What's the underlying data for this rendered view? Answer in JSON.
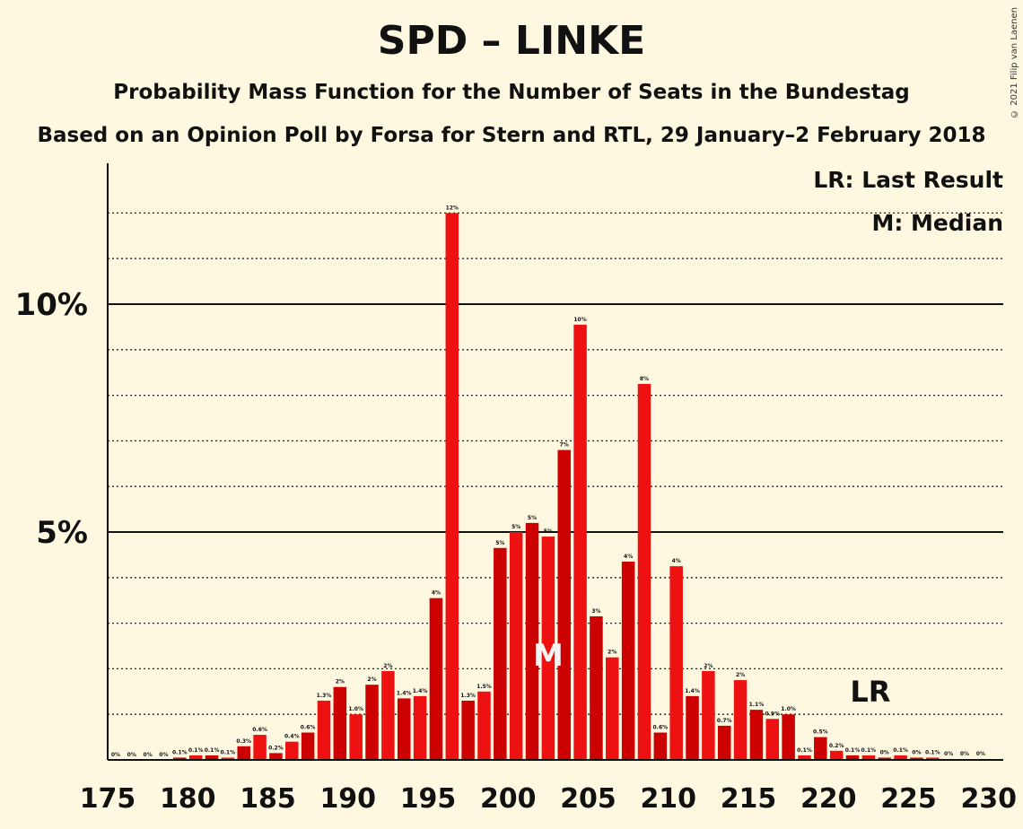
{
  "title": "SPD – LINKE",
  "subtitle": "Probability Mass Function for the Number of Seats in the Bundestag",
  "subtitle2": "Based on an Opinion Poll by Forsa for Stern and RTL, 29 January–2 February 2018",
  "copyright": "© 2021 Filip van Laenen",
  "legend": {
    "lr": "LR: Last Result",
    "m": "M: Median"
  },
  "markers": {
    "median_label": "M",
    "median_seat": 202,
    "last_result_label": "LR",
    "last_result_seat": 222
  },
  "colors": {
    "bar_dark": "#cc0000",
    "bar_light": "#ee1111",
    "background": "#fff8e1"
  },
  "chart_data": {
    "type": "bar",
    "xlim": [
      175,
      230
    ],
    "ylim": [
      0,
      13
    ],
    "yticks": [
      {
        "value": 5,
        "label": "5%"
      },
      {
        "value": 10,
        "label": "10%"
      }
    ],
    "xticks": [
      175,
      180,
      185,
      190,
      195,
      200,
      205,
      210,
      215,
      220,
      225,
      230
    ],
    "categories": [
      175,
      176,
      177,
      178,
      179,
      180,
      181,
      182,
      183,
      184,
      185,
      186,
      187,
      188,
      189,
      190,
      191,
      192,
      193,
      194,
      195,
      196,
      197,
      198,
      199,
      200,
      201,
      202,
      203,
      204,
      205,
      206,
      207,
      208,
      209,
      210,
      211,
      212,
      213,
      214,
      215,
      216,
      217,
      218,
      219,
      220,
      221,
      222,
      223,
      224,
      225,
      226,
      227,
      228,
      229
    ],
    "values": [
      0,
      0,
      0,
      0,
      0.05,
      0.1,
      0.1,
      0.05,
      0.3,
      0.55,
      0.15,
      0.4,
      0.6,
      1.3,
      1.6,
      1.0,
      1.65,
      1.95,
      1.35,
      1.4,
      3.55,
      12.0,
      1.3,
      1.5,
      4.65,
      5.0,
      5.2,
      4.9,
      6.8,
      9.55,
      3.15,
      2.25,
      4.35,
      8.25,
      0.6,
      4.25,
      1.4,
      1.95,
      0.75,
      1.75,
      1.1,
      0.9,
      1.0,
      0.1,
      0.5,
      0.2,
      0.1,
      0.1,
      0.05,
      0.1,
      0.05,
      0.05,
      0.02,
      0.02,
      0.02
    ],
    "labels": [
      "0%",
      "0%",
      "0%",
      "0%",
      "0.1%",
      "0.1%",
      "0.1%",
      "0.1%",
      "0.3%",
      "0.6%",
      "0.2%",
      "0.4%",
      "0.6%",
      "1.3%",
      "2%",
      "1.0%",
      "2%",
      "2%",
      "1.4%",
      "1.4%",
      "4%",
      "12%",
      "1.3%",
      "1.5%",
      "5%",
      "5%",
      "5%",
      "5%",
      "7%",
      "10%",
      "3%",
      "2%",
      "4%",
      "8%",
      "0.6%",
      "4%",
      "1.4%",
      "2%",
      "0.7%",
      "2%",
      "1.1%",
      "0.9%",
      "1.0%",
      "0.1%",
      "0.5%",
      "0.2%",
      "0.1%",
      "0.1%",
      "0%",
      "0.1%",
      "0%",
      "0.1%",
      "0%",
      "0%",
      "0%"
    ]
  }
}
